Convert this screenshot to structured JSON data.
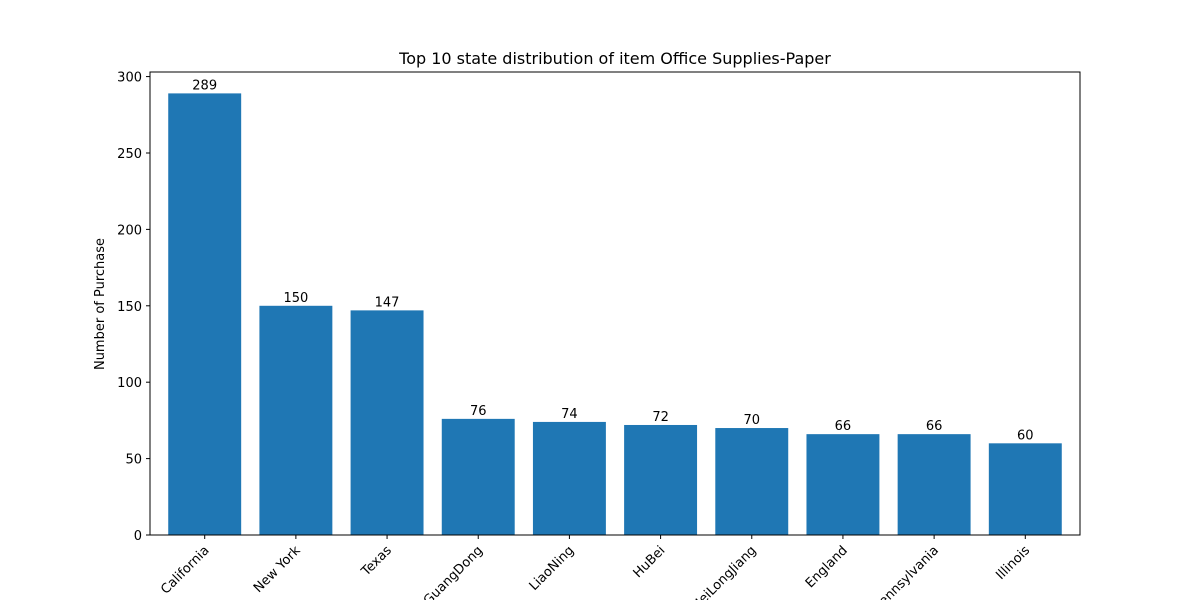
{
  "chart_data": {
    "type": "bar",
    "title": "Top 10 state distribution of item Office Supplies-Paper",
    "xlabel": "",
    "ylabel": "Number of Purchase",
    "categories": [
      "California",
      "New York",
      "Texas",
      "GuangDong",
      "LiaoNing",
      "HuBei",
      "HeiLongJiang",
      "England",
      "Pennsylvania",
      "Illinois"
    ],
    "values": [
      289,
      150,
      147,
      76,
      74,
      72,
      70,
      66,
      66,
      60
    ],
    "ylim": [
      0,
      303
    ],
    "yticks": [
      0,
      50,
      100,
      150,
      200,
      250,
      300
    ],
    "grid": false,
    "bar_color": "#1f77b4",
    "data_labels": true
  }
}
